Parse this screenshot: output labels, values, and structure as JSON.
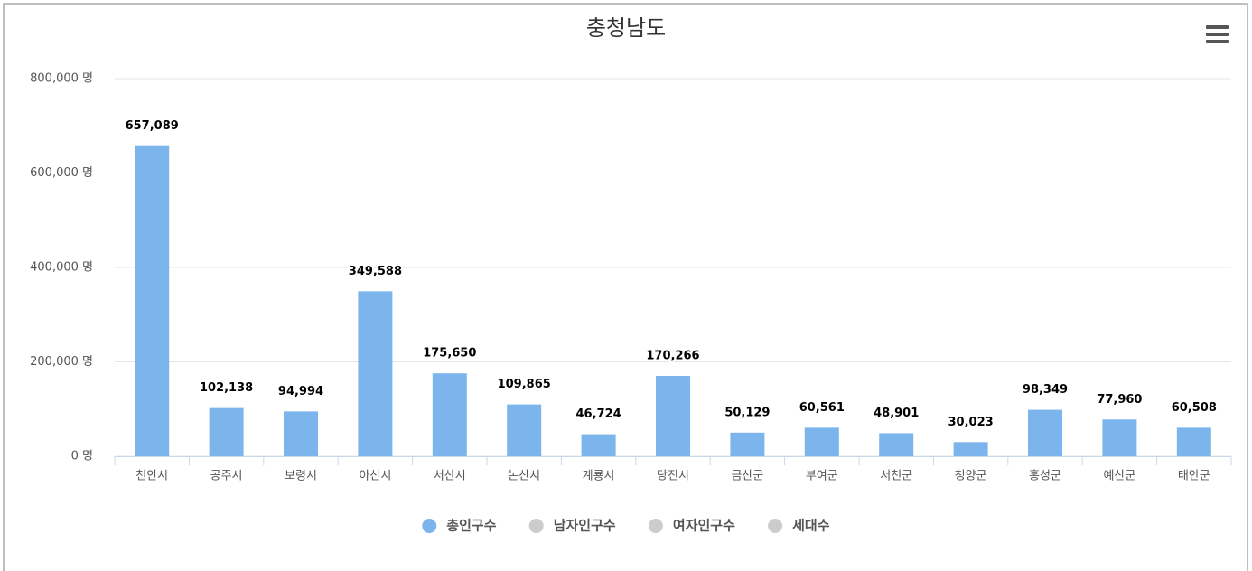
{
  "chart_data": {
    "type": "bar",
    "title": "충청남도",
    "categories": [
      "천안시",
      "공주시",
      "보령시",
      "아산시",
      "서산시",
      "논산시",
      "계룡시",
      "당진시",
      "금산군",
      "부여군",
      "서천군",
      "청양군",
      "홍성군",
      "예산군",
      "태안군"
    ],
    "series": [
      {
        "name": "총인구수",
        "color": "#7cb5ec",
        "visible": true,
        "values": [
          657089,
          102138,
          94994,
          349588,
          175650,
          109865,
          46724,
          170266,
          50129,
          60561,
          48901,
          30023,
          98349,
          77960,
          60508
        ],
        "value_labels": [
          "657,089",
          "102,138",
          "94,994",
          "349,588",
          "175,650",
          "109,865",
          "46,724",
          "170,266",
          "50,129",
          "60,561",
          "48,901",
          "30,023",
          "98,349",
          "77,960",
          "60,508"
        ]
      },
      {
        "name": "남자인구수",
        "color": "#cccccc",
        "visible": false
      },
      {
        "name": "여자인구수",
        "color": "#cccccc",
        "visible": false
      },
      {
        "name": "세대수",
        "color": "#cccccc",
        "visible": false
      }
    ],
    "ylim": [
      0,
      800000
    ],
    "yticks": [
      {
        "value": 0,
        "label": "0 명"
      },
      {
        "value": 200000,
        "label": "200,000 명"
      },
      {
        "value": 400000,
        "label": "400,000 명"
      },
      {
        "value": 600000,
        "label": "600,000 명"
      },
      {
        "value": 800000,
        "label": "800,000 명"
      }
    ],
    "grid": true
  }
}
